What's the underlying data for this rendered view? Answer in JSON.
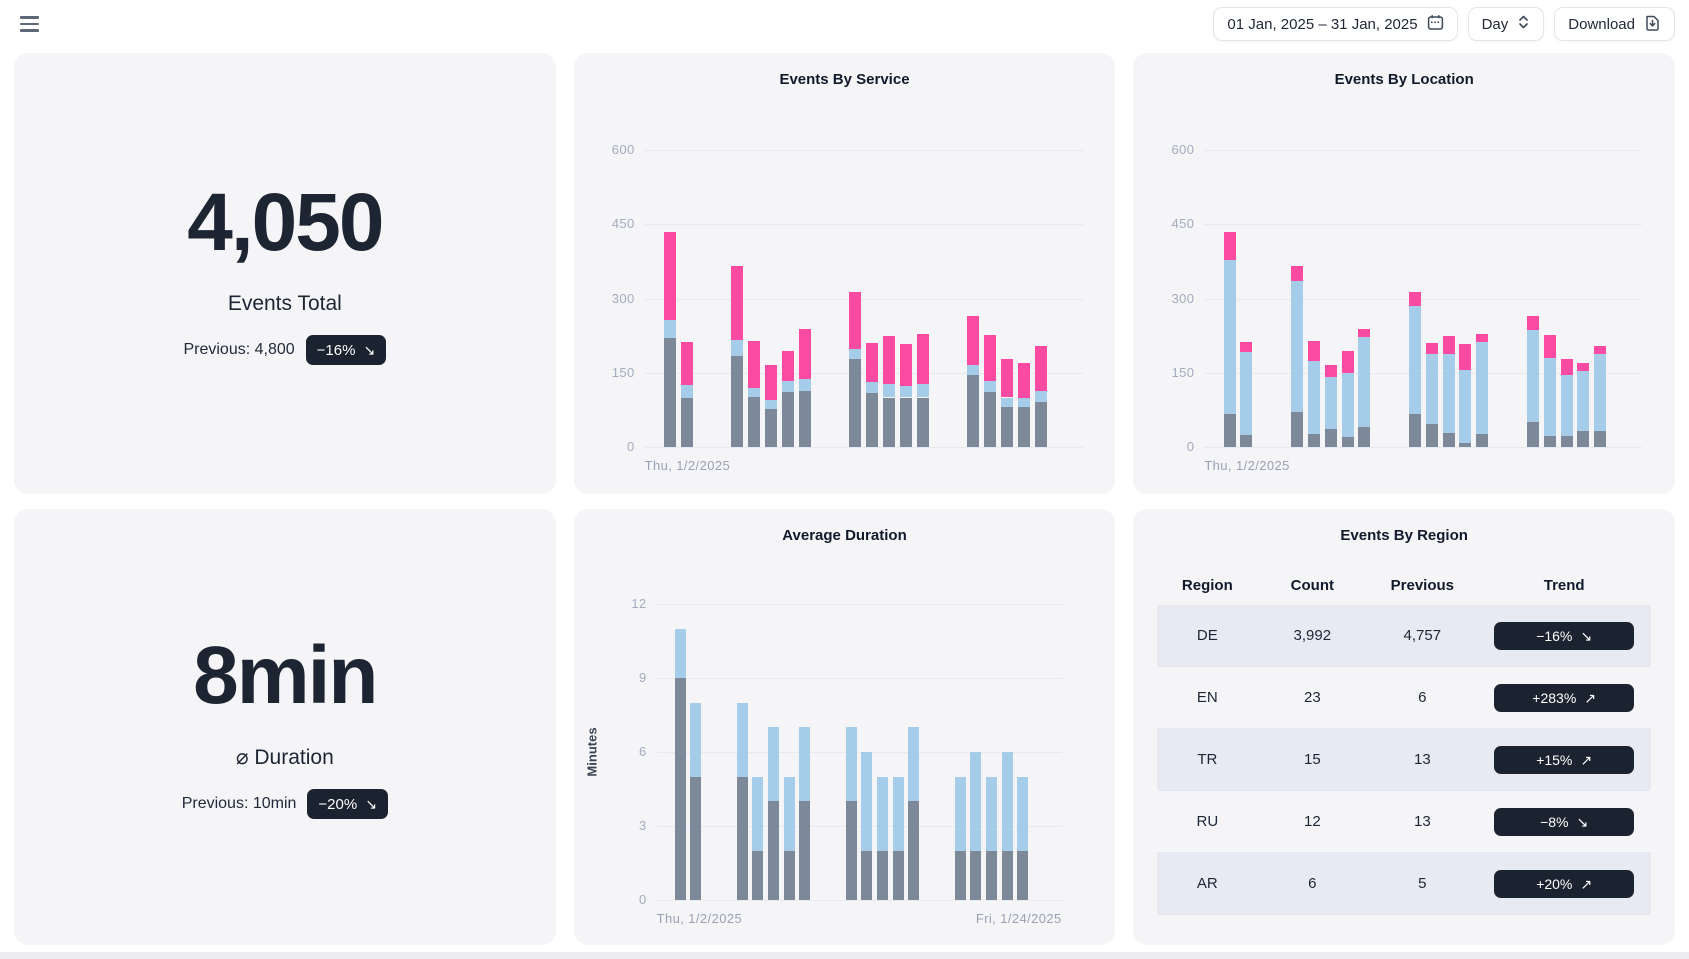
{
  "topbar": {
    "menu_icon": "hamburger-menu",
    "date_range_label": "01 Jan, 2025 – 31 Jan, 2025",
    "granularity_label": "Day",
    "download_label": "Download"
  },
  "colors": {
    "bar_gray": "#7d8898",
    "bar_blue": "#a5cde9",
    "bar_pink": "#fb4aa2",
    "badge_bg": "#1b2230",
    "card_bg": "#f5f5f7",
    "row_stripe": "#e7e9f3",
    "gridline": "#e6e8f2"
  },
  "stat_cards": [
    {
      "value": "4,050",
      "label": "Events Total",
      "previous": "Previous: 4,800",
      "trend": "−16%",
      "arrow": "↘"
    },
    {
      "value": "8min",
      "label": "⌀ Duration",
      "previous": "Previous: 10min",
      "trend": "−20%",
      "arrow": "↘"
    }
  ],
  "chart_data": [
    {
      "type": "bar",
      "stacked": true,
      "title": "Events By Service",
      "x_unit": "day of January 2025",
      "x_domain_days": 26,
      "days": [
        2,
        3,
        6,
        7,
        8,
        9,
        10,
        13,
        14,
        15,
        16,
        17,
        20,
        21,
        22,
        23,
        24
      ],
      "ylim": [
        0,
        600
      ],
      "yticks": [
        0,
        150,
        300,
        450,
        600
      ],
      "grid": true,
      "legend": "none",
      "x_axis_labels": {
        "left": "Thu, 1/2/2025"
      },
      "series": [
        {
          "name": "service-gray",
          "color": "#7d8898",
          "values": [
            220,
            100,
            183,
            101,
            76,
            111,
            113,
            177,
            110,
            100,
            100,
            100,
            145,
            111,
            81,
            81,
            91
          ]
        },
        {
          "name": "service-blue",
          "color": "#a5cde9",
          "values": [
            36,
            25,
            34,
            18,
            18,
            22,
            25,
            20,
            21,
            27,
            23,
            28,
            20,
            22,
            19,
            17,
            22
          ]
        },
        {
          "name": "service-pink",
          "color": "#fb4aa2",
          "values": [
            179,
            87,
            148,
            95,
            71,
            61,
            101,
            116,
            79,
            97,
            85,
            100,
            99,
            94,
            77,
            72,
            91
          ]
        }
      ]
    },
    {
      "type": "bar",
      "stacked": true,
      "title": "Events By Location",
      "x_unit": "day of January 2025",
      "x_domain_days": 26,
      "days": [
        2,
        3,
        6,
        7,
        8,
        9,
        10,
        13,
        14,
        15,
        16,
        17,
        20,
        21,
        22,
        23,
        24
      ],
      "ylim": [
        0,
        600
      ],
      "yticks": [
        0,
        150,
        300,
        450,
        600
      ],
      "grid": true,
      "legend": "none",
      "x_axis_labels": {
        "left": "Thu, 1/2/2025"
      },
      "series": [
        {
          "name": "location-gray",
          "color": "#7d8898",
          "values": [
            66,
            24,
            71,
            26,
            36,
            20,
            40,
            66,
            47,
            29,
            9,
            27,
            51,
            22,
            22,
            32,
            32
          ]
        },
        {
          "name": "location-blue",
          "color": "#a5cde9",
          "values": [
            312,
            167,
            264,
            148,
            106,
            130,
            182,
            219,
            140,
            158,
            146,
            185,
            185,
            158,
            123,
            122,
            155
          ]
        },
        {
          "name": "location-pink",
          "color": "#fb4aa2",
          "values": [
            57,
            21,
            30,
            40,
            23,
            44,
            17,
            28,
            23,
            37,
            53,
            16,
            28,
            47,
            32,
            16,
            17
          ]
        }
      ]
    },
    {
      "type": "bar",
      "stacked": true,
      "title": "Average Duration",
      "ylabel": "Minutes",
      "x_unit": "day of January 2025",
      "x_domain_days": 26,
      "days": [
        2,
        3,
        6,
        7,
        8,
        9,
        10,
        13,
        14,
        15,
        16,
        17,
        20,
        21,
        22,
        23,
        24
      ],
      "ylim": [
        0,
        12
      ],
      "yticks": [
        0,
        3,
        6,
        9,
        12
      ],
      "grid": true,
      "legend": "none",
      "x_axis_labels": {
        "left": "Thu, 1/2/2025",
        "right": "Fri, 1/24/2025"
      },
      "series": [
        {
          "name": "duration-gray",
          "color": "#7d8898",
          "values": [
            9,
            5,
            5,
            2,
            4,
            2,
            4,
            4,
            2,
            2,
            2,
            4,
            2,
            2,
            2,
            2,
            2
          ]
        },
        {
          "name": "duration-blue",
          "color": "#a5cde9",
          "values": [
            2,
            3,
            3,
            3,
            3,
            3,
            3,
            3,
            4,
            3,
            3,
            3,
            3,
            4,
            3,
            4,
            3
          ]
        }
      ]
    },
    {
      "type": "table",
      "title": "Events By Region",
      "columns": [
        "Region",
        "Count",
        "Previous",
        "Trend"
      ],
      "rows": [
        {
          "region": "DE",
          "count": "3,992",
          "previous": "4,757",
          "trend": "−16%",
          "arrow": "↘"
        },
        {
          "region": "EN",
          "count": "23",
          "previous": "6",
          "trend": "+283%",
          "arrow": "↗"
        },
        {
          "region": "TR",
          "count": "15",
          "previous": "13",
          "trend": "+15%",
          "arrow": "↗"
        },
        {
          "region": "RU",
          "count": "12",
          "previous": "13",
          "trend": "−8%",
          "arrow": "↘"
        },
        {
          "region": "AR",
          "count": "6",
          "previous": "5",
          "trend": "+20%",
          "arrow": "↗"
        }
      ]
    }
  ]
}
